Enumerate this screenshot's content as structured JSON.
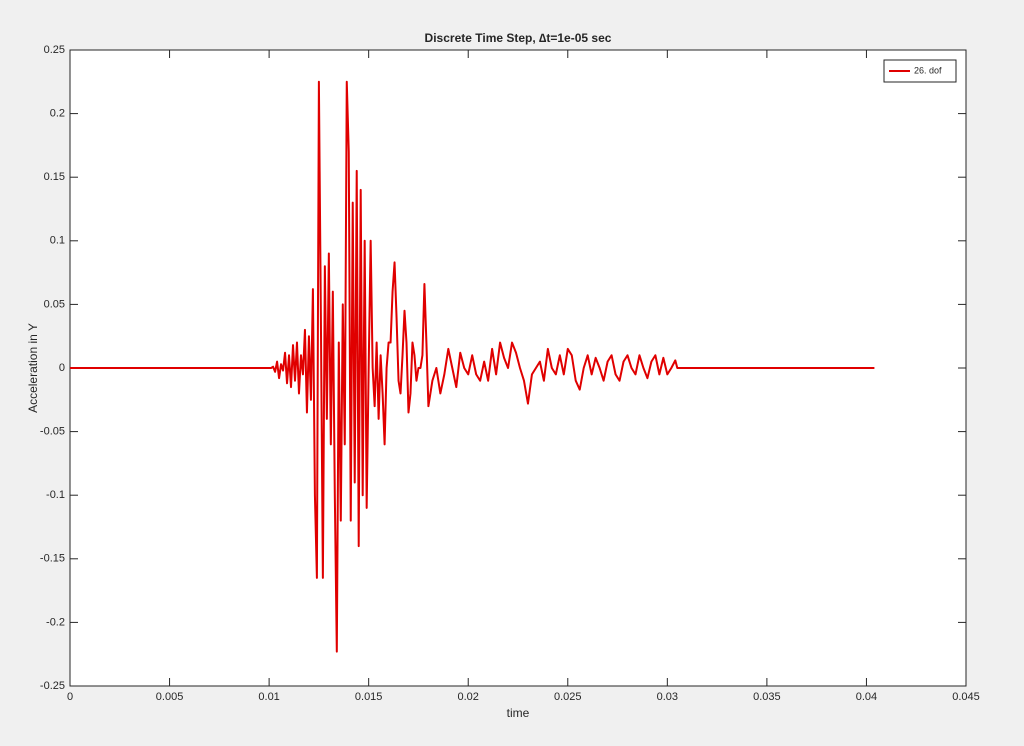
{
  "chart_data": {
    "type": "line",
    "title": "Discrete Time Step, ∆t=1e-05 sec",
    "xlabel": "time",
    "ylabel": "Acceleration in Y",
    "xlim": [
      0,
      0.045
    ],
    "ylim": [
      -0.25,
      0.25
    ],
    "xticks": [
      0,
      0.005,
      0.01,
      0.015,
      0.02,
      0.025,
      0.03,
      0.035,
      0.04,
      0.045
    ],
    "yticks": [
      -0.25,
      -0.2,
      -0.15,
      -0.1,
      -0.05,
      0,
      0.05,
      0.1,
      0.15,
      0.2,
      0.25
    ],
    "grid": false,
    "legend": "northeast",
    "x": [
      0,
      0.0101,
      0.0102,
      0.0103,
      0.0104,
      0.0105,
      0.0106,
      0.0107,
      0.0108,
      0.0109,
      0.011,
      0.0111,
      0.0112,
      0.0113,
      0.0114,
      0.0115,
      0.0116,
      0.0117,
      0.0118,
      0.0119,
      0.012,
      0.0121,
      0.0122,
      0.0123,
      0.0124,
      0.0125,
      0.0126,
      0.0127,
      0.0128,
      0.0129,
      0.013,
      0.0131,
      0.0132,
      0.0133,
      0.0134,
      0.0135,
      0.0136,
      0.0137,
      0.0138,
      0.0139,
      0.014,
      0.0141,
      0.0142,
      0.0143,
      0.0144,
      0.0145,
      0.0146,
      0.0147,
      0.0148,
      0.0149,
      0.015,
      0.0151,
      0.0152,
      0.0153,
      0.0154,
      0.0155,
      0.0156,
      0.0157,
      0.0158,
      0.0159,
      0.016,
      0.0161,
      0.0162,
      0.0163,
      0.0164,
      0.0165,
      0.0166,
      0.0167,
      0.0168,
      0.0169,
      0.017,
      0.0171,
      0.0172,
      0.0173,
      0.0174,
      0.0175,
      0.0176,
      0.0177,
      0.0178,
      0.0179,
      0.018,
      0.0182,
      0.0184,
      0.0186,
      0.0188,
      0.019,
      0.0192,
      0.0194,
      0.0196,
      0.0198,
      0.02,
      0.0202,
      0.0204,
      0.0206,
      0.0208,
      0.021,
      0.0212,
      0.0214,
      0.0216,
      0.0218,
      0.022,
      0.0222,
      0.0224,
      0.0226,
      0.0228,
      0.023,
      0.0232,
      0.0234,
      0.0236,
      0.0238,
      0.024,
      0.0242,
      0.0244,
      0.0246,
      0.0248,
      0.025,
      0.0252,
      0.0254,
      0.0256,
      0.0258,
      0.026,
      0.0262,
      0.0264,
      0.0266,
      0.0268,
      0.027,
      0.0272,
      0.0274,
      0.0276,
      0.0278,
      0.028,
      0.0282,
      0.0284,
      0.0286,
      0.0288,
      0.029,
      0.0292,
      0.0294,
      0.0296,
      0.0298,
      0.03,
      0.0302,
      0.0304,
      0.0305,
      0.0404
    ],
    "series": [
      {
        "name": "26. dof",
        "color": "#e00000",
        "values": [
          0,
          0,
          0.001,
          -0.003,
          0.005,
          -0.008,
          0.003,
          -0.002,
          0.012,
          -0.012,
          0.01,
          -0.015,
          0.018,
          -0.01,
          0.02,
          -0.02,
          0.01,
          -0.005,
          0.03,
          -0.035,
          0.025,
          -0.025,
          0.062,
          -0.1,
          -0.165,
          0.225,
          0.04,
          -0.165,
          0.08,
          -0.04,
          0.09,
          -0.06,
          0.06,
          -0.1,
          -0.223,
          0.02,
          -0.12,
          0.05,
          -0.06,
          0.225,
          0.17,
          -0.12,
          0.13,
          -0.09,
          0.155,
          -0.14,
          0.14,
          -0.1,
          0.1,
          -0.11,
          0,
          0.1,
          0,
          -0.03,
          0.02,
          -0.04,
          0.01,
          -0.02,
          -0.06,
          0,
          0.02,
          0.02,
          0.06,
          0.083,
          0.04,
          -0.01,
          -0.02,
          0.01,
          0.045,
          0.02,
          -0.035,
          -0.02,
          0.02,
          0.01,
          -0.01,
          0,
          0,
          0.01,
          0.066,
          0.02,
          -0.03,
          -0.01,
          0,
          -0.02,
          -0.005,
          0.015,
          0,
          -0.015,
          0.012,
          0,
          -0.005,
          0.01,
          -0.005,
          -0.01,
          0.005,
          -0.01,
          0.015,
          -0.005,
          0.02,
          0.008,
          0,
          0.02,
          0.012,
          0,
          -0.01,
          -0.028,
          -0.005,
          0,
          0.005,
          -0.01,
          0.015,
          0,
          -0.005,
          0.01,
          -0.005,
          0.015,
          0.01,
          -0.01,
          -0.017,
          0,
          0.01,
          -0.005,
          0.008,
          0,
          -0.01,
          0.005,
          0.01,
          -0.005,
          -0.01,
          0.005,
          0.01,
          0,
          -0.005,
          0.01,
          0,
          -0.008,
          0.005,
          0.01,
          -0.005,
          0.008,
          -0.005,
          0,
          0.006,
          0,
          0
        ]
      }
    ]
  }
}
